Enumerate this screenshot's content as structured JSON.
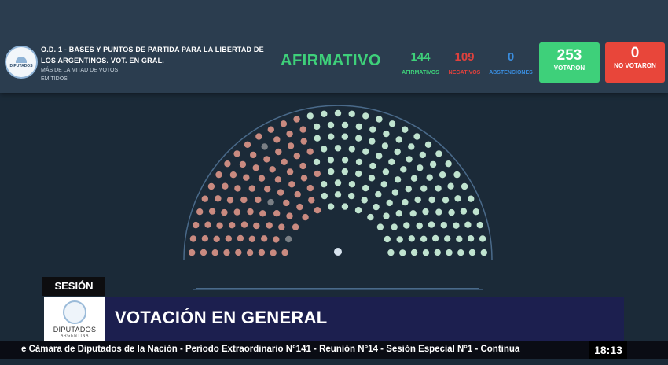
{
  "header": {
    "logo_text": "DIPUTADOS",
    "motion_title": "O.D. 1 - BASES Y PUNTOS DE PARTIDA PARA LA LIBERTAD DE LOS ARGENTINOS. VOT. EN GRAL.",
    "majority_note": "MÁS DE LA MITAD DE VOTOS EMITIDOS",
    "result": "AFIRMATIVO",
    "affirmative": {
      "value": "144",
      "label": "AFIRMATIVOS"
    },
    "negative": {
      "value": "109",
      "label": "NEGATIVOS"
    },
    "abstentions": {
      "value": "0",
      "label": "ABSTENCIONES"
    },
    "voted": {
      "value": "253",
      "label": "VOTARON"
    },
    "not_voted": {
      "value": "0",
      "label": "NO VOTARON"
    }
  },
  "colors": {
    "affirmative": "#3ed07a",
    "negative": "#e0413d",
    "abstention": "#3a8dde",
    "seat_for": "#bfe3cf",
    "seat_against": "#c98a80",
    "seat_absent": "#7a7f85",
    "voted_box": "#3ed07a",
    "not_voted_box": "#e8463a"
  },
  "chamber": {
    "seat_groups": [
      "against",
      "for"
    ],
    "president_seat": "president"
  },
  "lower_third": {
    "tag": "SESIÓN",
    "logo_name": "DIPUTADOS",
    "logo_country": "ARGENTINA",
    "headline": "VOTACIÓN EN GENERAL",
    "ticker": "e Cámara de Diputados de la Nación - Período Extraordinario N°141 - Reunión N°14 - Sesión Especial N°1 - Continua",
    "clock": "18:13"
  }
}
